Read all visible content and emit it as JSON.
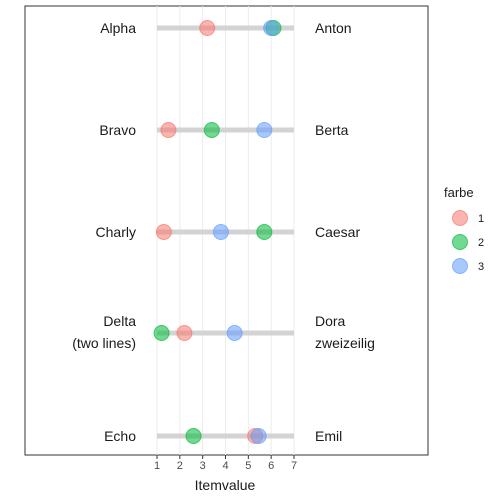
{
  "chart_data": {
    "type": "scatter",
    "xlabel": "Itemvalue",
    "xlim": [
      1,
      7
    ],
    "x_ticks": [
      1,
      2,
      3,
      4,
      5,
      6,
      7
    ],
    "grid": "vertical",
    "legend": {
      "title": "farbe",
      "placement": "right",
      "entries": [
        {
          "label": "1",
          "color": "#F8766D"
        },
        {
          "label": "2",
          "color": "#00BA38"
        },
        {
          "label": "3",
          "color": "#619CFF"
        }
      ]
    },
    "rows": [
      {
        "left": [
          "Alpha"
        ],
        "right": [
          "Anton"
        ],
        "points": [
          {
            "group": "1",
            "x": 3.2
          },
          {
            "group": "2",
            "x": 6.1
          },
          {
            "group": "3",
            "x": 6.0
          }
        ]
      },
      {
        "left": [
          "Bravo"
        ],
        "right": [
          "Berta"
        ],
        "points": [
          {
            "group": "1",
            "x": 1.5
          },
          {
            "group": "2",
            "x": 3.4
          },
          {
            "group": "3",
            "x": 5.7
          }
        ]
      },
      {
        "left": [
          "Charly"
        ],
        "right": [
          "Caesar"
        ],
        "points": [
          {
            "group": "1",
            "x": 1.3
          },
          {
            "group": "2",
            "x": 5.7
          },
          {
            "group": "3",
            "x": 3.8
          }
        ]
      },
      {
        "left": [
          "Delta",
          "(two lines)"
        ],
        "right": [
          "Dora",
          "zweizeilig"
        ],
        "points": [
          {
            "group": "1",
            "x": 2.2
          },
          {
            "group": "2",
            "x": 1.2
          },
          {
            "group": "3",
            "x": 4.4
          }
        ]
      },
      {
        "left": [
          "Echo"
        ],
        "right": [
          "Emil"
        ],
        "points": [
          {
            "group": "1",
            "x": 5.3
          },
          {
            "group": "2",
            "x": 2.6
          },
          {
            "group": "3",
            "x": 5.45
          }
        ]
      }
    ]
  }
}
